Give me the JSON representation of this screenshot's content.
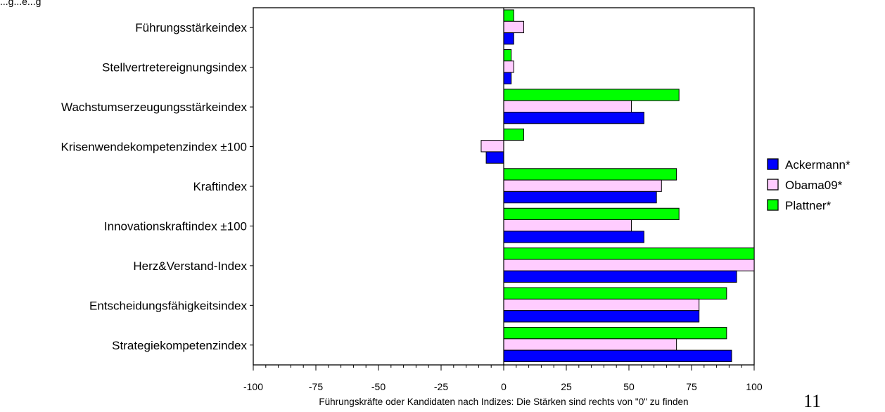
{
  "page": {
    "title_fragment": "...g...e...g",
    "page_number": "11"
  },
  "chart_data": {
    "type": "bar",
    "orientation": "horizontal",
    "title": "",
    "xlabel": "Führungskräfte oder Kandidaten nach Indizes: Die Stärken sind rechts von \"0\" zu finden",
    "ylabel": "",
    "xlim": [
      -100,
      100
    ],
    "x_ticks": [
      "-100",
      "-75",
      "-50",
      "-25",
      "0",
      "25",
      "50",
      "75",
      "100"
    ],
    "grid": false,
    "legend_position": "right",
    "categories": [
      "Führungsstärkeindex",
      "Stellvertretereignungsindex",
      "Wachstumserzeugungsstärkeindex",
      "Krisenwendekompetenzindex ±100",
      "Kraftindex",
      "Innovationskraftindex ±100",
      "Herz&Verstand-Index",
      "Entscheidungsfähigkeitsindex",
      "Strategiekompetenzindex"
    ],
    "series": [
      {
        "name": "Ackermann*",
        "color": "#0000ff",
        "values": [
          4,
          3,
          56,
          -7,
          61,
          56,
          93,
          78,
          91
        ]
      },
      {
        "name": "Obama09*",
        "color": "#ffccff",
        "values": [
          8,
          4,
          51,
          -9,
          63,
          51,
          100,
          78,
          69
        ]
      },
      {
        "name": "Plattner*",
        "color": "#00ff00",
        "values": [
          4,
          3,
          70,
          8,
          69,
          70,
          100,
          89,
          89
        ]
      }
    ]
  }
}
